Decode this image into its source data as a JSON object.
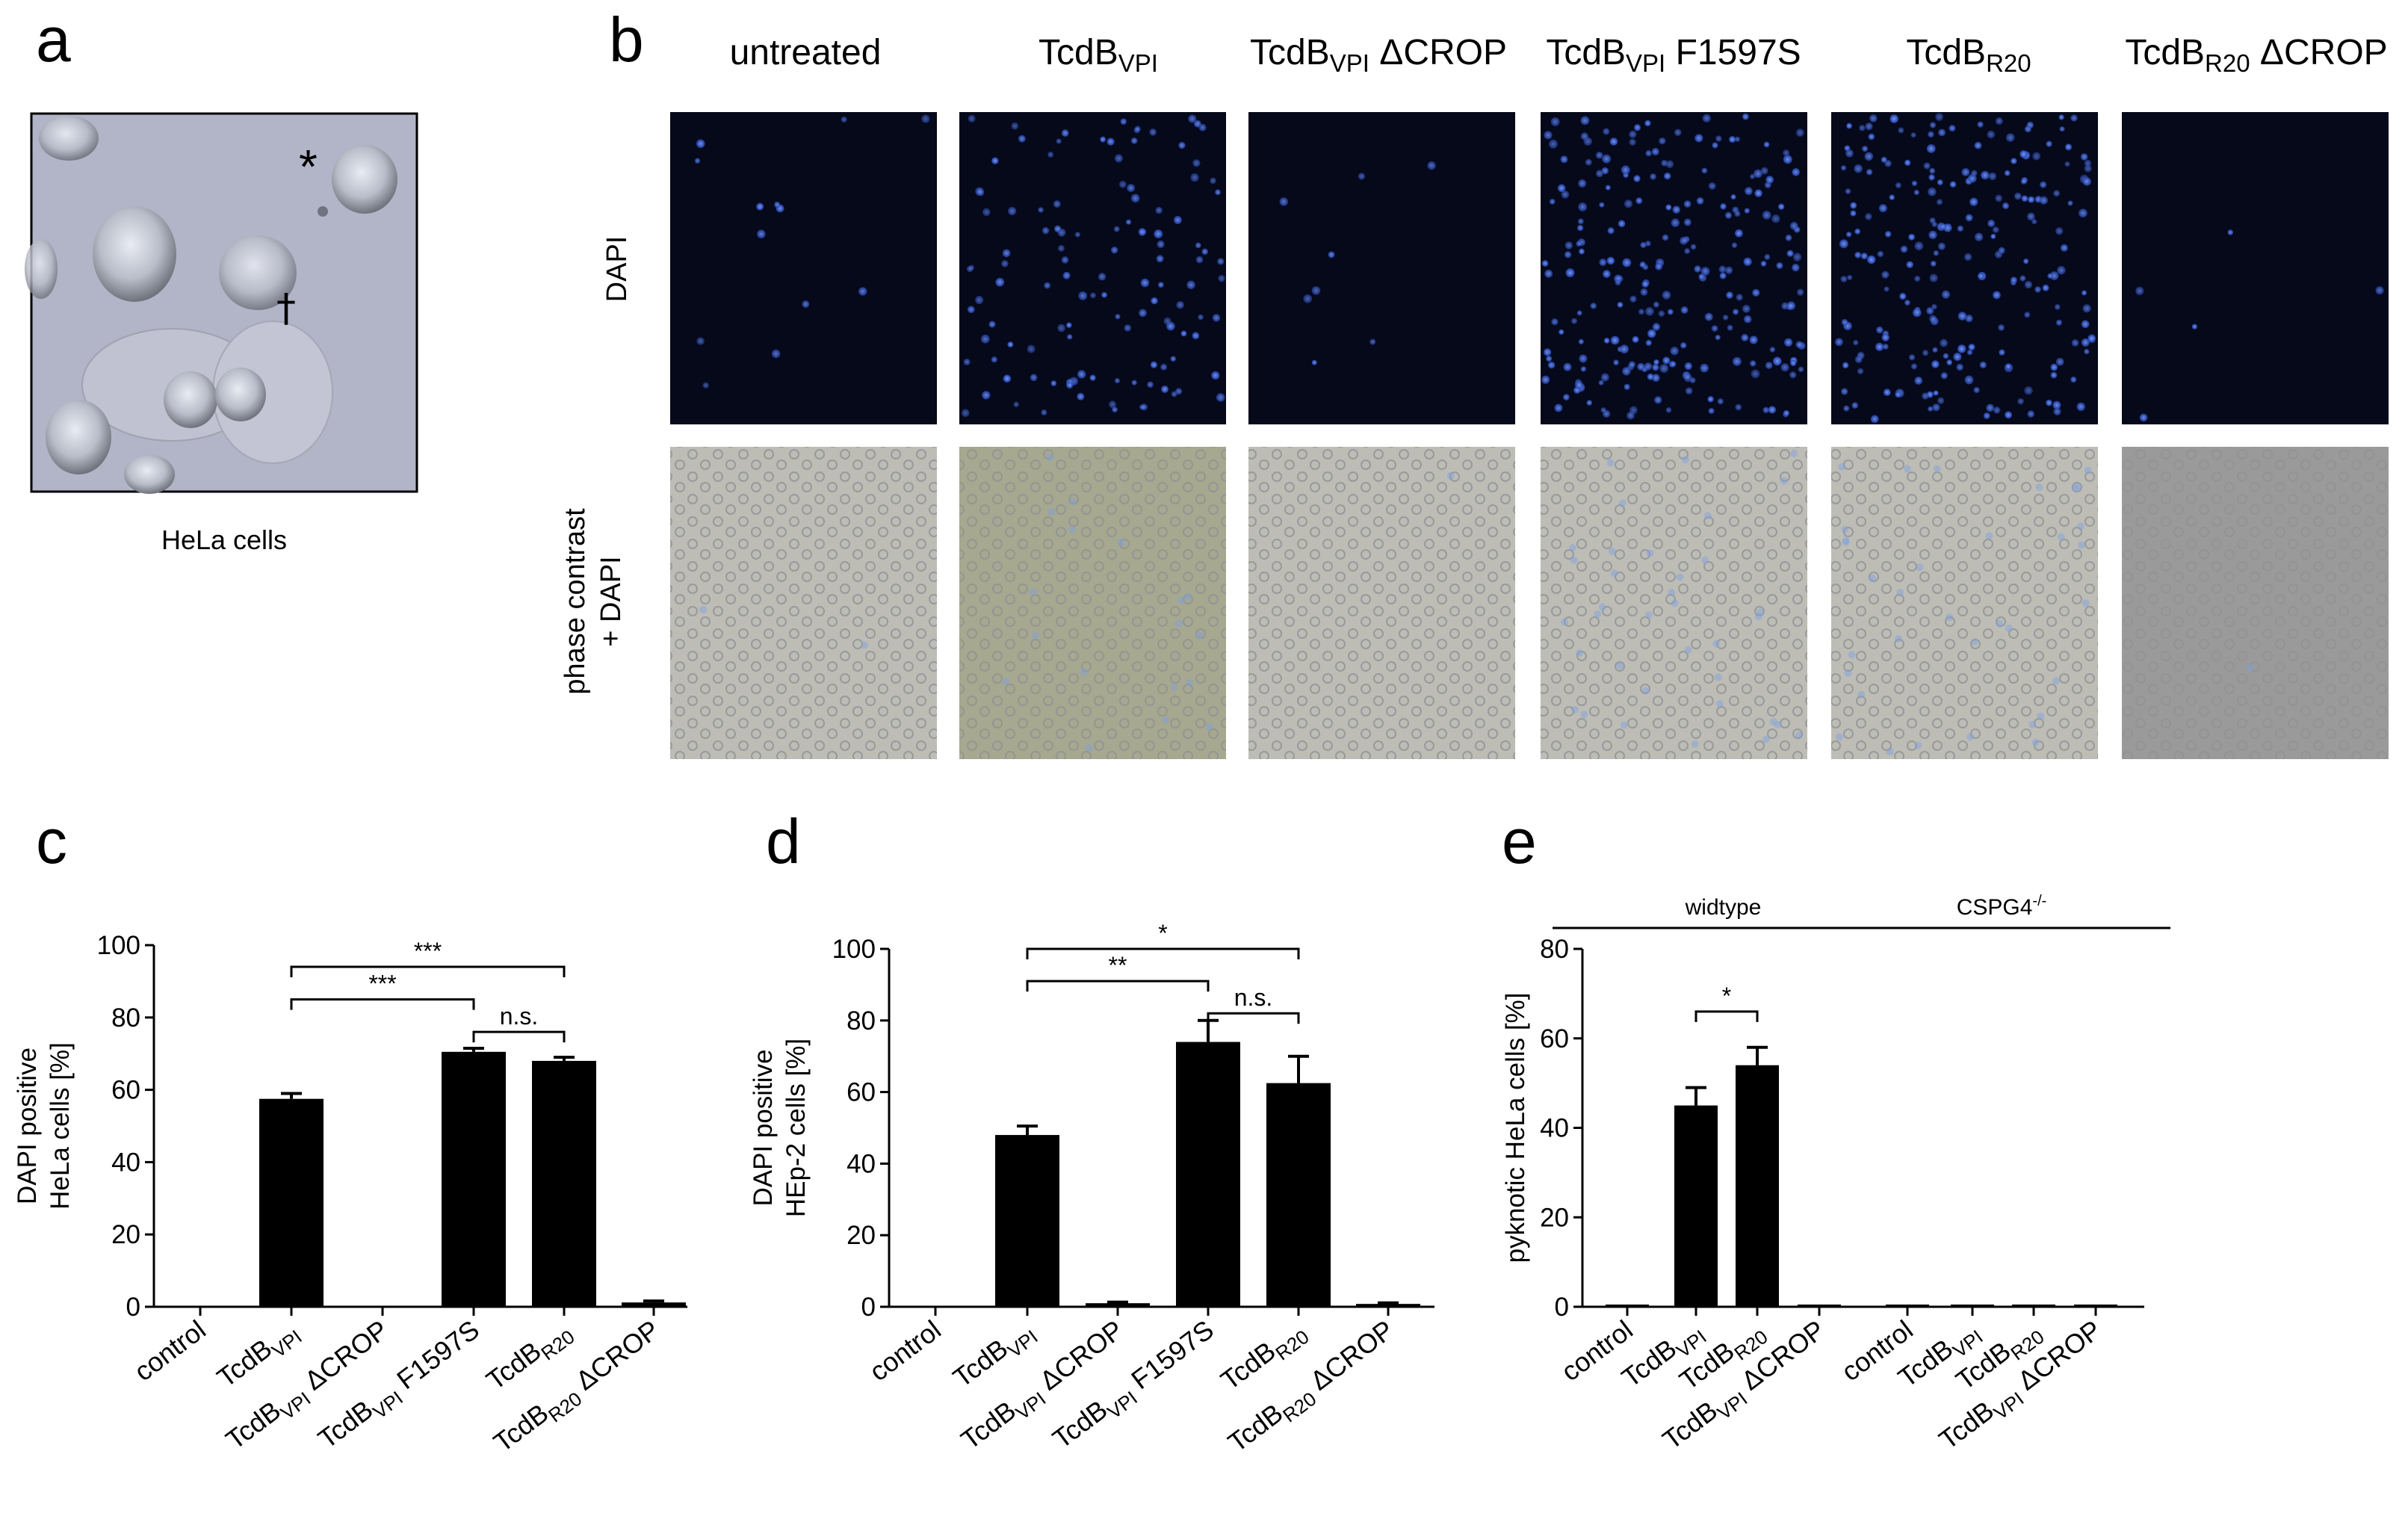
{
  "panel_a": {
    "letter": "a",
    "caption": "HeLa cells",
    "marker_asterisk": "*",
    "marker_dagger": "†"
  },
  "panel_b": {
    "letter": "b",
    "row_labels": [
      "DAPI",
      "phase contrast",
      "+ DAPI"
    ],
    "columns": [
      {
        "main": "untreated",
        "sub": "",
        "tail": ""
      },
      {
        "main": "TcdB",
        "sub": "VPI",
        "tail": ""
      },
      {
        "main": "TcdB",
        "sub": "VPI",
        "tail": " ΔCROP"
      },
      {
        "main": "TcdB",
        "sub": "VPI",
        "tail": " F1597S"
      },
      {
        "main": "TcdB",
        "sub": "R20",
        "tail": ""
      },
      {
        "main": "TcdB",
        "sub": "R20",
        "tail": " ΔCROP"
      }
    ],
    "dapi_intensity": [
      0.05,
      0.45,
      0.03,
      0.9,
      0.85,
      0.02
    ]
  },
  "chart_data": [
    {
      "panel": "c",
      "type": "bar",
      "ylabel": [
        "DAPI positive",
        "HeLa cells [%]"
      ],
      "ylim": [
        0,
        100
      ],
      "yticks": [
        0,
        20,
        40,
        60,
        80,
        100
      ],
      "categories": [
        {
          "main": "control",
          "sub": "",
          "tail": ""
        },
        {
          "main": "TcdB",
          "sub": "VPI",
          "tail": ""
        },
        {
          "main": "TcdB",
          "sub": "VPI",
          "tail": " ΔCROP"
        },
        {
          "main": "TcdB",
          "sub": "VPI",
          "tail": " F1597S"
        },
        {
          "main": "TcdB",
          "sub": "R20",
          "tail": ""
        },
        {
          "main": "TcdB",
          "sub": "R20",
          "tail": " ΔCROP"
        }
      ],
      "values": [
        0,
        57.5,
        0,
        70.5,
        68,
        1.2
      ],
      "errors": [
        0,
        1.5,
        0,
        1,
        1,
        0.4
      ],
      "significance": [
        {
          "from": 1,
          "to": 4,
          "label": "***",
          "y": 94
        },
        {
          "from": 1,
          "to": 3,
          "label": "***",
          "y": 85
        },
        {
          "from": 3,
          "to": 4,
          "label": "n.s.",
          "y": 76
        }
      ]
    },
    {
      "panel": "d",
      "type": "bar",
      "ylabel": [
        "DAPI positive",
        "HEp-2 cells [%]"
      ],
      "ylim": [
        0,
        100
      ],
      "yticks": [
        0,
        20,
        40,
        60,
        80,
        100
      ],
      "categories": [
        {
          "main": "control",
          "sub": "",
          "tail": ""
        },
        {
          "main": "TcdB",
          "sub": "VPI",
          "tail": ""
        },
        {
          "main": "TcdB",
          "sub": "VPI",
          "tail": " ΔCROP"
        },
        {
          "main": "TcdB",
          "sub": "VPI",
          "tail": " F1597S"
        },
        {
          "main": "TcdB",
          "sub": "R20",
          "tail": ""
        },
        {
          "main": "TcdB",
          "sub": "R20",
          "tail": " ΔCROP"
        }
      ],
      "values": [
        0,
        48,
        1,
        74,
        62.5,
        0.8
      ],
      "errors": [
        0,
        2.5,
        0.3,
        6,
        7.5,
        0.3
      ],
      "significance": [
        {
          "from": 1,
          "to": 4,
          "label": "*",
          "y": 100
        },
        {
          "from": 1,
          "to": 3,
          "label": "**",
          "y": 91
        },
        {
          "from": 3,
          "to": 4,
          "label": "n.s.",
          "y": 82
        }
      ]
    },
    {
      "panel": "e",
      "type": "bar",
      "ylabel": [
        "pyknotic HeLa cells [%]"
      ],
      "ylim": [
        0,
        80
      ],
      "yticks": [
        0,
        20,
        40,
        60,
        80
      ],
      "groups": [
        {
          "label": "widtype",
          "from": 0,
          "to": 3
        },
        {
          "label": "CSPG4",
          "sup": "-/-",
          "from": 4,
          "to": 7
        }
      ],
      "categories": [
        {
          "main": "control",
          "sub": "",
          "tail": ""
        },
        {
          "main": "TcdB",
          "sub": "VPI",
          "tail": ""
        },
        {
          "main": "TcdB",
          "sub": "R20",
          "tail": ""
        },
        {
          "main": "TcdB",
          "sub": "VPI",
          "tail": " ΔCROP"
        },
        {
          "main": "control",
          "sub": "",
          "tail": ""
        },
        {
          "main": "TcdB",
          "sub": "VPI",
          "tail": ""
        },
        {
          "main": "TcdB",
          "sub": "R20",
          "tail": ""
        },
        {
          "main": "TcdB",
          "sub": "VPI",
          "tail": " ΔCROP"
        }
      ],
      "values": [
        0.5,
        45,
        54,
        0.5,
        0.5,
        0.5,
        0.5,
        0.5
      ],
      "errors": [
        0,
        4,
        4,
        0,
        0,
        0,
        0,
        0
      ],
      "significance": [
        {
          "from": 1,
          "to": 2,
          "label": "*",
          "y": 66
        }
      ]
    }
  ]
}
